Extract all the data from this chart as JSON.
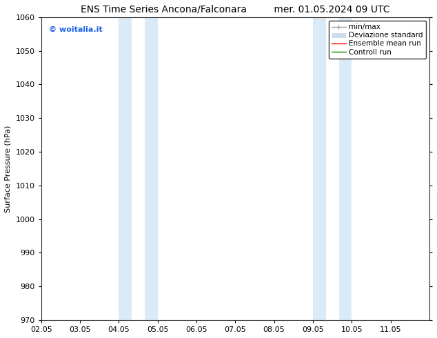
{
  "title_left": "ENS Time Series Ancona/Falconara",
  "title_right": "mer. 01.05.2024 09 UTC",
  "ylabel": "Surface Pressure (hPa)",
  "ylim": [
    970,
    1060
  ],
  "yticks": [
    970,
    980,
    990,
    1000,
    1010,
    1020,
    1030,
    1040,
    1050,
    1060
  ],
  "xlim": [
    0,
    10
  ],
  "xtick_labels": [
    "02.05",
    "03.05",
    "04.05",
    "05.05",
    "06.05",
    "07.05",
    "08.05",
    "09.05",
    "10.05",
    "11.05"
  ],
  "xtick_positions": [
    0,
    1,
    2,
    3,
    4,
    5,
    6,
    7,
    8,
    9
  ],
  "shaded_bands": [
    {
      "x_start": 2.0,
      "x_end": 2.33,
      "color": "#daeaf7"
    },
    {
      "x_start": 2.67,
      "x_end": 3.0,
      "color": "#daeaf7"
    },
    {
      "x_start": 7.0,
      "x_end": 7.33,
      "color": "#daeaf7"
    },
    {
      "x_start": 7.67,
      "x_end": 8.0,
      "color": "#daeaf7"
    }
  ],
  "watermark_text": "© woitalia.it",
  "watermark_color": "#1a5fe8",
  "background_color": "#ffffff",
  "legend_entries": [
    {
      "label": "min/max",
      "color": "#999999",
      "lw": 1.0
    },
    {
      "label": "Deviazione standard",
      "color": "#ccddee",
      "lw": 5
    },
    {
      "label": "Ensemble mean run",
      "color": "#ff0000",
      "lw": 1.0
    },
    {
      "label": "Controll run",
      "color": "#008800",
      "lw": 1.0
    }
  ],
  "title_fontsize": 10,
  "axis_label_fontsize": 8,
  "tick_fontsize": 8,
  "legend_fontsize": 7.5
}
